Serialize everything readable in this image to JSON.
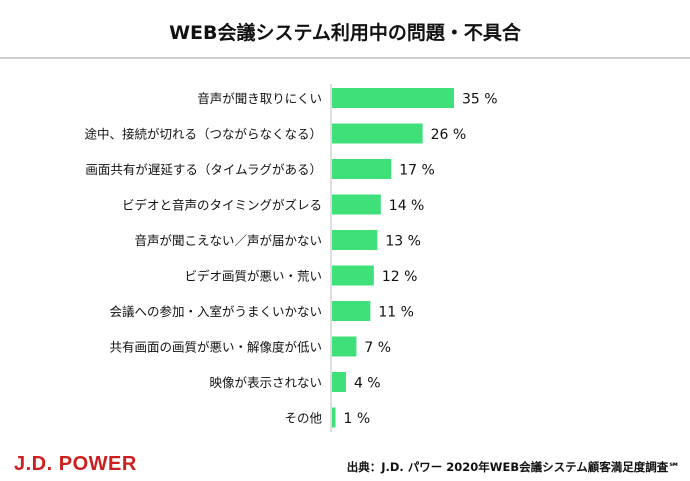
{
  "brand": "J.D. POWER",
  "source": "出典：J.D. パワー 2020年WEB会議システム顧客満足度調査℠",
  "colors": {
    "bar": "#3fe07a",
    "axis": "#bdbdbd",
    "title": "#111111",
    "brand": "#cc1f1f"
  },
  "chart_data": {
    "type": "bar",
    "orientation": "horizontal",
    "title": "WEB会議システム利用中の問題・不具合",
    "categories": [
      "音声が聞き取りにくい",
      "途中、接続が切れる（つながらなくなる）",
      "画面共有が遅延する（タイムラグがある）",
      "ビデオと音声のタイミングがズレる",
      "音声が聞こえない／声が届かない",
      "ビデオ画質が悪い・荒い",
      "会議への参加・入室がうまくいかない",
      "共有画面の画質が悪い・解像度が低い",
      "映像が表示されない",
      "その他"
    ],
    "values": [
      35,
      26,
      17,
      14,
      13,
      12,
      11,
      7,
      4,
      1
    ],
    "value_labels": [
      "35 %",
      "26 %",
      "17 %",
      "14 %",
      "13 %",
      "12 %",
      "11 %",
      "7 %",
      "4 %",
      "1 %"
    ],
    "xlim": [
      0,
      35
    ],
    "grid": false,
    "legend": "none"
  }
}
